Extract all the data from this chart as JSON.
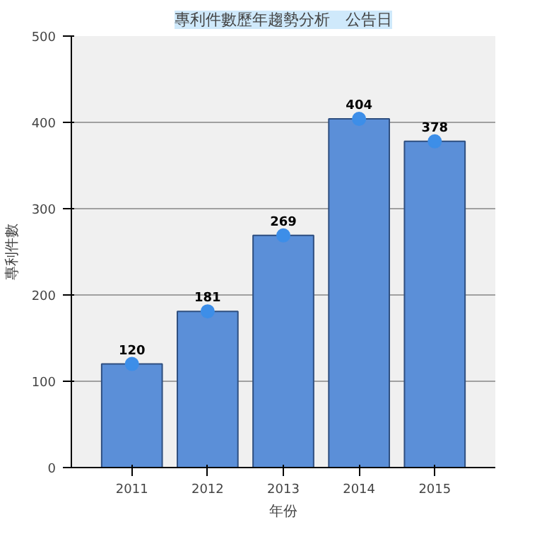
{
  "chart_data": {
    "type": "bar",
    "title": "專利件數歷年趨勢分析　公告日",
    "xlabel": "年份",
    "ylabel": "專利件數",
    "categories": [
      "2011",
      "2012",
      "2013",
      "2014",
      "2015"
    ],
    "series": [
      {
        "color": "#5b8fd8",
        "values": [
          120,
          181,
          269,
          404,
          378
        ]
      },
      {
        "type": "scatter",
        "color": "#3d8ee8",
        "values": [
          120,
          181,
          269,
          404,
          378
        ],
        "value_labels": [
          "120",
          "181",
          "269",
          "404",
          "378"
        ]
      }
    ],
    "marker": "circle",
    "ylim": [
      0,
      500
    ],
    "yticks": [
      0,
      100,
      200,
      300,
      400,
      500
    ],
    "grid": "y"
  }
}
